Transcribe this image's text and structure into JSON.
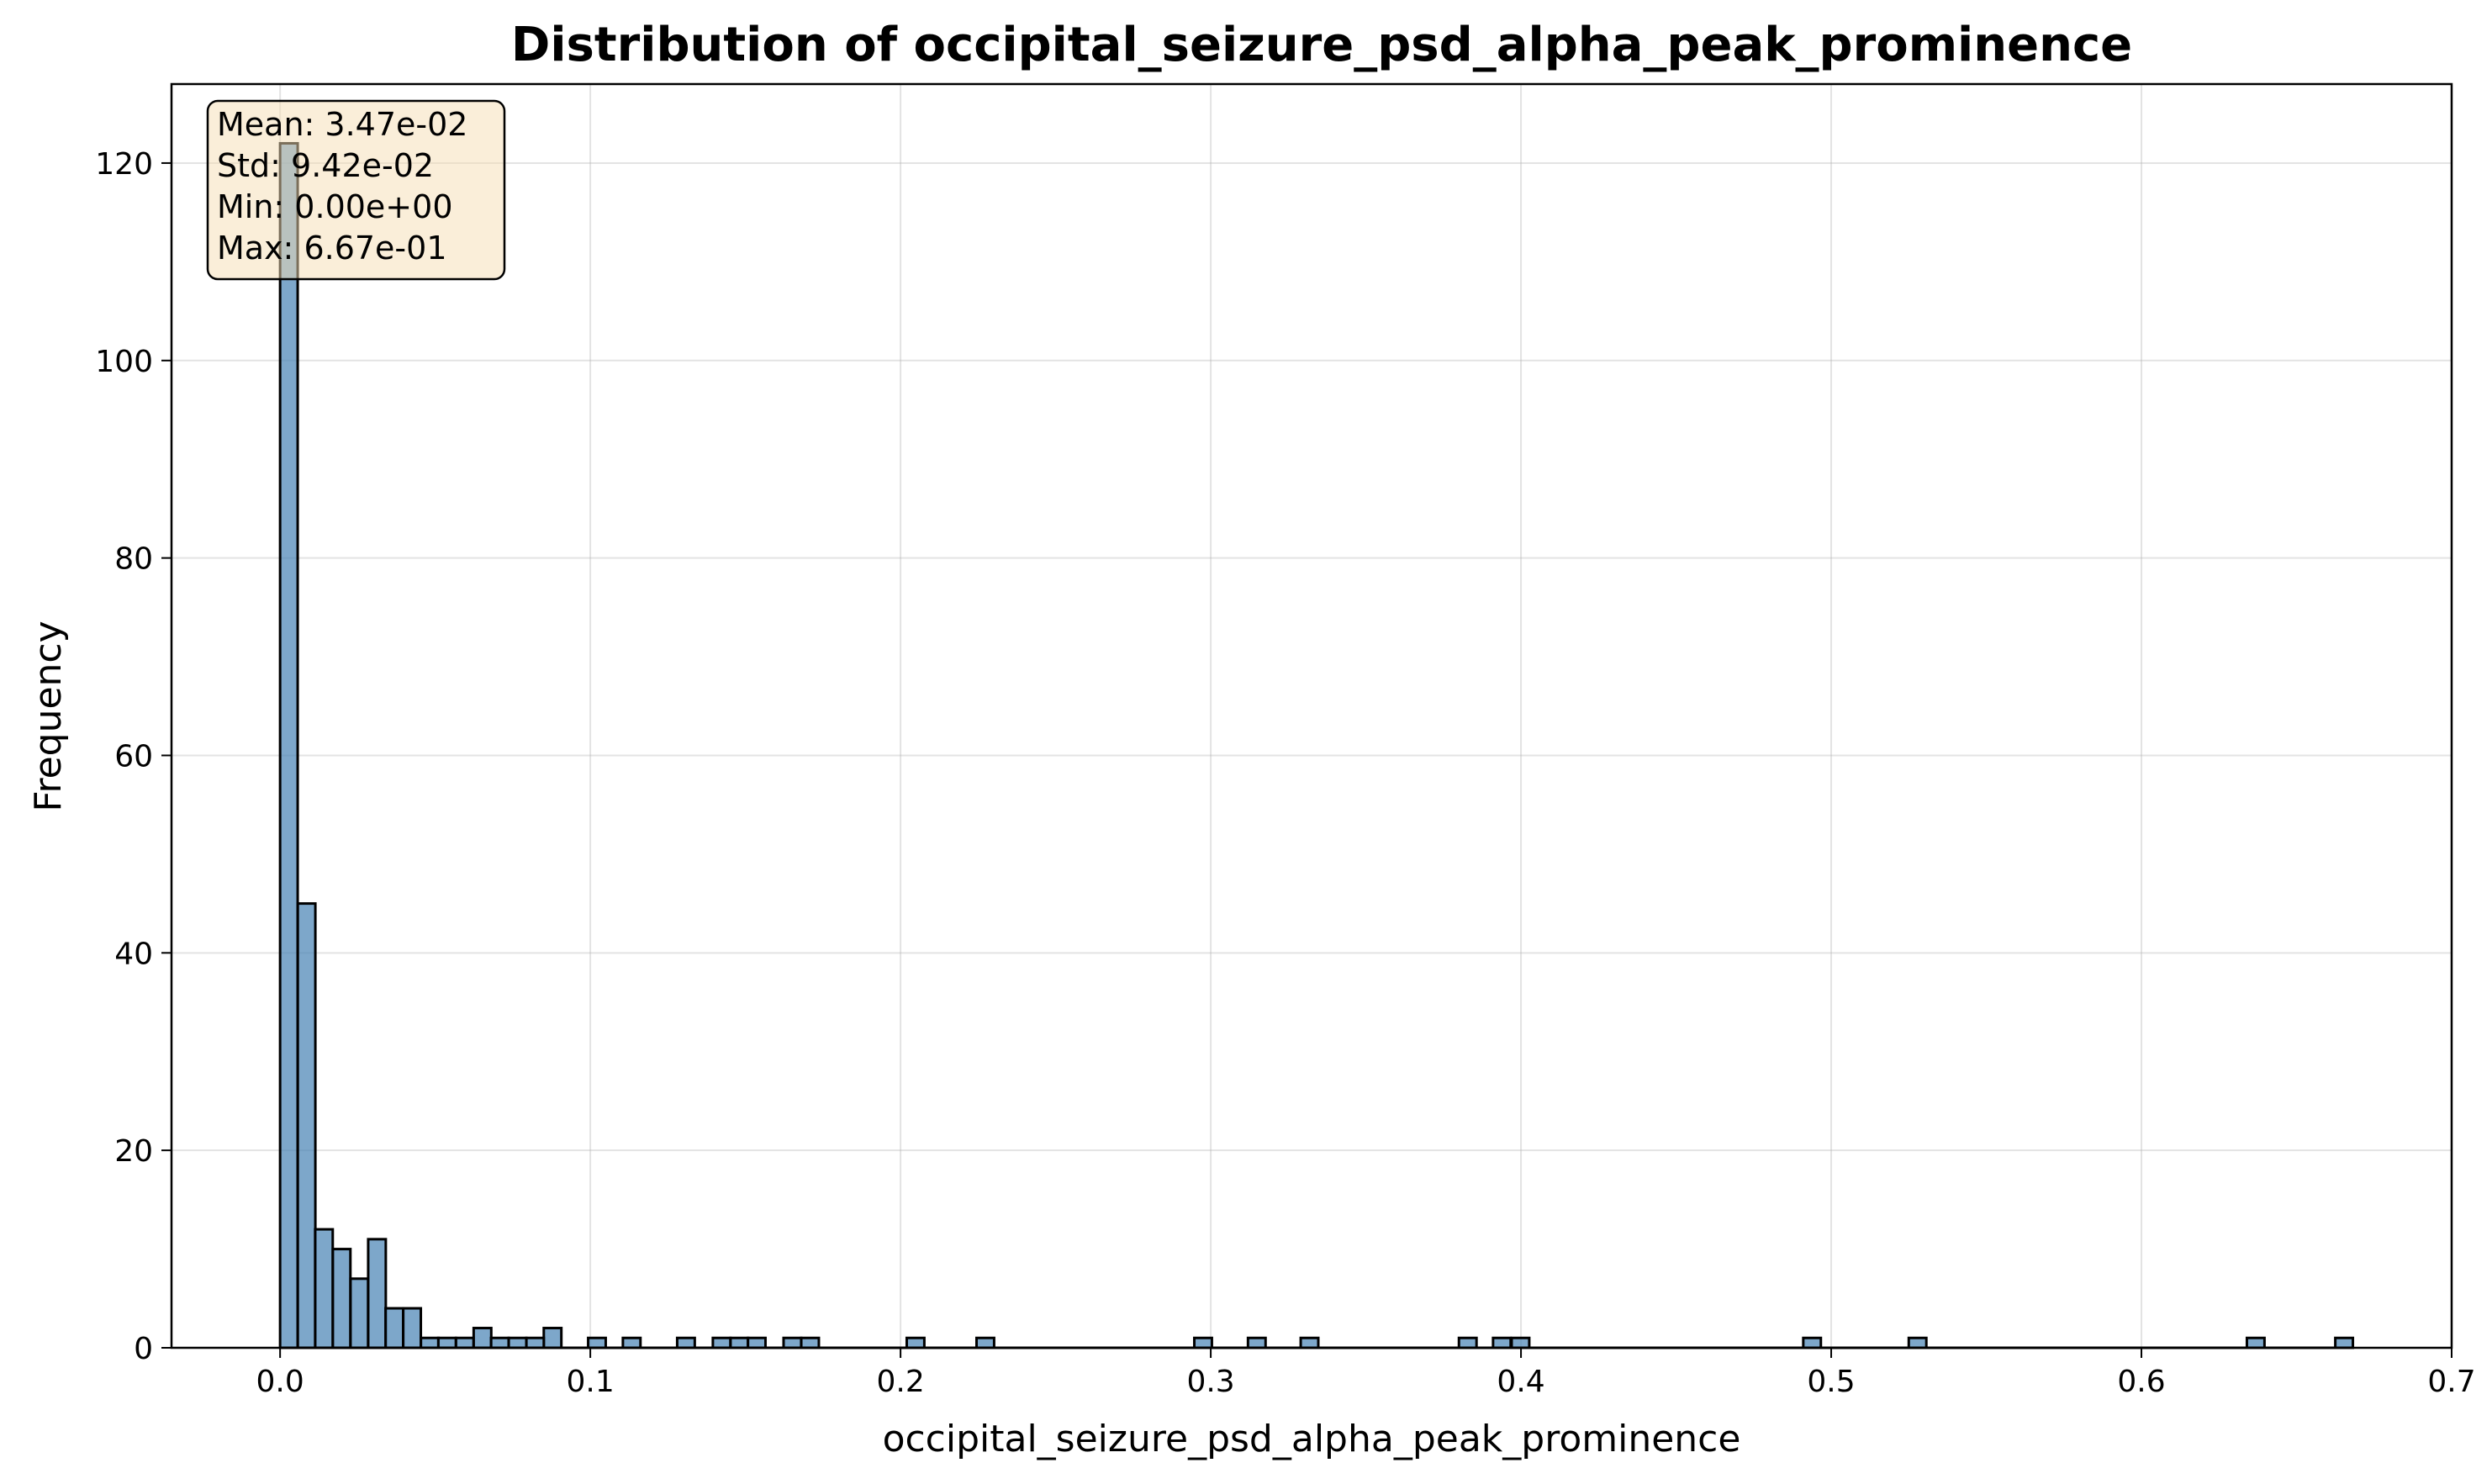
{
  "chart_data": {
    "type": "bar",
    "title": "Distribution of occipital_seizure_psd_alpha_peak_prominence",
    "xlabel": "occipital_seizure_psd_alpha_peak_prominence",
    "ylabel": "Frequency",
    "xlim": [
      -0.035,
      0.7
    ],
    "ylim": [
      0,
      128
    ],
    "xticks": [
      "0.0",
      "0.1",
      "0.2",
      "0.3",
      "0.4",
      "0.5",
      "0.6",
      "0.7"
    ],
    "yticks": [
      "0",
      "20",
      "40",
      "60",
      "80",
      "100",
      "120"
    ],
    "grid": true,
    "bar_color": "#4682b4",
    "bin_width": 0.00567,
    "bins": [
      {
        "x": 0.0,
        "count": 122
      },
      {
        "x": 0.0057,
        "count": 45
      },
      {
        "x": 0.0113,
        "count": 12
      },
      {
        "x": 0.017,
        "count": 10
      },
      {
        "x": 0.0227,
        "count": 7
      },
      {
        "x": 0.0284,
        "count": 11
      },
      {
        "x": 0.034,
        "count": 4
      },
      {
        "x": 0.0397,
        "count": 4
      },
      {
        "x": 0.0454,
        "count": 1
      },
      {
        "x": 0.051,
        "count": 1
      },
      {
        "x": 0.0567,
        "count": 1
      },
      {
        "x": 0.0624,
        "count": 2
      },
      {
        "x": 0.068,
        "count": 1
      },
      {
        "x": 0.0737,
        "count": 1
      },
      {
        "x": 0.0794,
        "count": 1
      },
      {
        "x": 0.085,
        "count": 2
      },
      {
        "x": 0.0993,
        "count": 1
      },
      {
        "x": 0.1105,
        "count": 1
      },
      {
        "x": 0.128,
        "count": 1
      },
      {
        "x": 0.1395,
        "count": 1
      },
      {
        "x": 0.1452,
        "count": 1
      },
      {
        "x": 0.1508,
        "count": 1
      },
      {
        "x": 0.1623,
        "count": 1
      },
      {
        "x": 0.168,
        "count": 1
      },
      {
        "x": 0.202,
        "count": 1
      },
      {
        "x": 0.2245,
        "count": 1
      },
      {
        "x": 0.2947,
        "count": 1
      },
      {
        "x": 0.312,
        "count": 1
      },
      {
        "x": 0.329,
        "count": 1
      },
      {
        "x": 0.38,
        "count": 1
      },
      {
        "x": 0.391,
        "count": 1
      },
      {
        "x": 0.397,
        "count": 1
      },
      {
        "x": 0.491,
        "count": 1
      },
      {
        "x": 0.525,
        "count": 1
      },
      {
        "x": 0.634,
        "count": 1
      },
      {
        "x": 0.6625,
        "count": 1
      }
    ],
    "stats_box": {
      "lines": [
        "Mean: 3.47e-02",
        "Std: 9.42e-02",
        "Min: 0.00e+00",
        "Max: 6.67e-01"
      ],
      "position": "top-left",
      "fill": "#f5deb3",
      "edge": "#000000"
    }
  }
}
